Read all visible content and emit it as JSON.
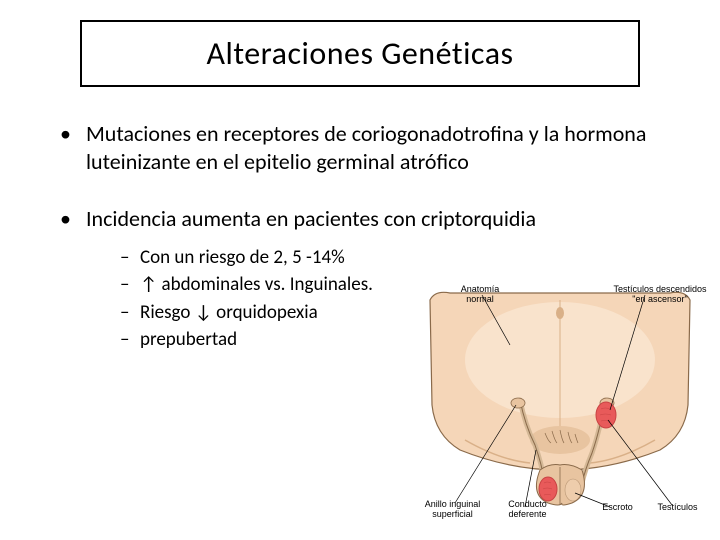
{
  "title": "Alteraciones Genéticas",
  "bullet1": "Mutaciones en receptores de coriogonadotrofina y la hormona luteinizante en el epitelio germinal atrófico",
  "bullet2": "Incidencia aumenta en pacientes con criptorquidia",
  "sub": {
    "a": "Con un riesgo de 2, 5 -14%",
    "b": "↑ abdominales vs. Inguinales.",
    "c": "Riesgo ↓ orquidopexia",
    "d": "prepubertad"
  },
  "diagram": {
    "labels": {
      "normal": "Anatomía\nnormal",
      "ascensor": "Testículos descendidos\n\"en ascensor\"",
      "anillo": "Anillo inguinal\nsuperficial",
      "conducto": "Conducto\ndeferente",
      "escroto": "Escroto",
      "testiculos": "Testículos"
    },
    "colors": {
      "skin": "#f5d6b8",
      "skin_shadow": "#e8c4a0",
      "skin_dark": "#d9b088",
      "outline": "#8a6a4a",
      "testis": "#e85a5a",
      "testis_dark": "#c94444",
      "duct": "#d4b896",
      "highlight": "#fcebd8"
    }
  }
}
